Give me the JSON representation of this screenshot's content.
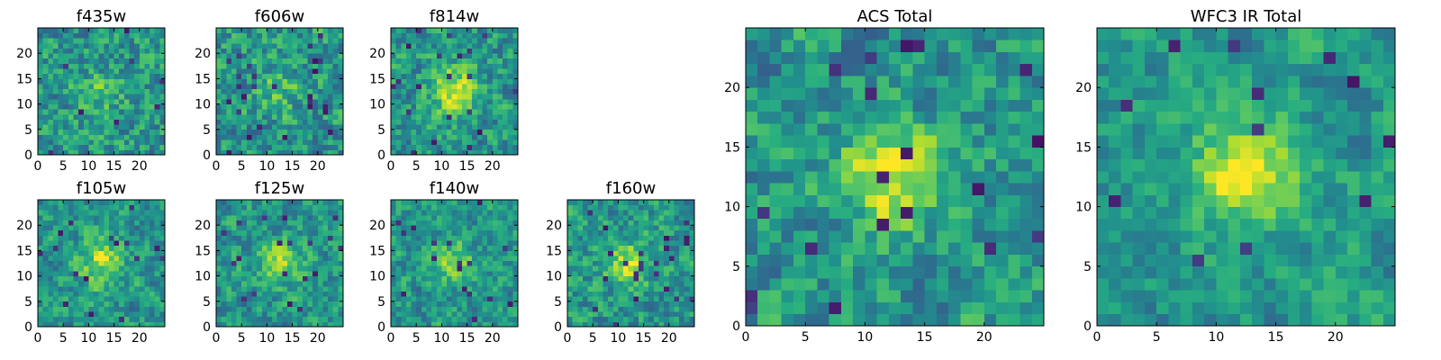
{
  "chart_data": [
    {
      "type": "heatmap",
      "title": "f435w",
      "colormap": "viridis",
      "grid": false,
      "xlim": [
        0,
        25
      ],
      "ylim": [
        0,
        25
      ],
      "xticks": [
        0,
        5,
        10,
        15,
        20
      ],
      "yticks": [
        0,
        5,
        10,
        15,
        20
      ],
      "tick_labels_x": [
        "0",
        "5",
        "10",
        "15",
        "20"
      ],
      "tick_labels_y": [
        "0",
        "5",
        "10",
        "15",
        "20"
      ],
      "pixel_grid": [
        25,
        25
      ],
      "center_peak": 0.15,
      "speckle": 0.7,
      "seed": 11
    },
    {
      "type": "heatmap",
      "title": "f606w",
      "colormap": "viridis",
      "grid": false,
      "xlim": [
        0,
        25
      ],
      "ylim": [
        0,
        25
      ],
      "xticks": [
        0,
        5,
        10,
        15,
        20
      ],
      "yticks": [
        0,
        5,
        10,
        15,
        20
      ],
      "tick_labels_x": [
        "0",
        "5",
        "10",
        "15",
        "20"
      ],
      "tick_labels_y": [
        "0",
        "5",
        "10",
        "15",
        "20"
      ],
      "pixel_grid": [
        25,
        25
      ],
      "center_peak": 0.2,
      "speckle": 0.7,
      "seed": 23
    },
    {
      "type": "heatmap",
      "title": "f814w",
      "colormap": "viridis",
      "grid": false,
      "xlim": [
        0,
        25
      ],
      "ylim": [
        0,
        25
      ],
      "xticks": [
        0,
        5,
        10,
        15,
        20
      ],
      "yticks": [
        0,
        5,
        10,
        15,
        20
      ],
      "tick_labels_x": [
        "0",
        "5",
        "10",
        "15",
        "20"
      ],
      "tick_labels_y": [
        "0",
        "5",
        "10",
        "15",
        "20"
      ],
      "pixel_grid": [
        25,
        25
      ],
      "center_peak": 0.45,
      "speckle": 0.65,
      "seed": 37
    },
    {
      "type": "heatmap",
      "title": "f105w",
      "colormap": "viridis",
      "grid": false,
      "xlim": [
        0,
        25
      ],
      "ylim": [
        0,
        25
      ],
      "xticks": [
        0,
        5,
        10,
        15,
        20
      ],
      "yticks": [
        0,
        5,
        10,
        15,
        20
      ],
      "tick_labels_x": [
        "0",
        "5",
        "10",
        "15",
        "20"
      ],
      "tick_labels_y": [
        "0",
        "5",
        "10",
        "15",
        "20"
      ],
      "pixel_grid": [
        25,
        25
      ],
      "center_peak": 0.35,
      "speckle": 0.55,
      "seed": 41
    },
    {
      "type": "heatmap",
      "title": "f125w",
      "colormap": "viridis",
      "grid": false,
      "xlim": [
        0,
        25
      ],
      "ylim": [
        0,
        25
      ],
      "xticks": [
        0,
        5,
        10,
        15,
        20
      ],
      "yticks": [
        0,
        5,
        10,
        15,
        20
      ],
      "tick_labels_x": [
        "0",
        "5",
        "10",
        "15",
        "20"
      ],
      "tick_labels_y": [
        "0",
        "5",
        "10",
        "15",
        "20"
      ],
      "pixel_grid": [
        25,
        25
      ],
      "center_peak": 0.3,
      "speckle": 0.55,
      "seed": 53
    },
    {
      "type": "heatmap",
      "title": "f140w",
      "colormap": "viridis",
      "grid": false,
      "xlim": [
        0,
        25
      ],
      "ylim": [
        0,
        25
      ],
      "xticks": [
        0,
        5,
        10,
        15,
        20
      ],
      "yticks": [
        0,
        5,
        10,
        15,
        20
      ],
      "tick_labels_x": [
        "0",
        "5",
        "10",
        "15",
        "20"
      ],
      "tick_labels_y": [
        "0",
        "5",
        "10",
        "15",
        "20"
      ],
      "pixel_grid": [
        25,
        25
      ],
      "center_peak": 0.3,
      "speckle": 0.55,
      "seed": 67
    },
    {
      "type": "heatmap",
      "title": "f160w",
      "colormap": "viridis",
      "grid": false,
      "xlim": [
        0,
        25
      ],
      "ylim": [
        0,
        25
      ],
      "xticks": [
        0,
        5,
        10,
        15,
        20
      ],
      "yticks": [
        0,
        5,
        10,
        15,
        20
      ],
      "tick_labels_x": [
        "0",
        "5",
        "10",
        "15",
        "20"
      ],
      "tick_labels_y": [
        "0",
        "5",
        "10",
        "15",
        "20"
      ],
      "pixel_grid": [
        25,
        25
      ],
      "center_peak": 0.4,
      "speckle": 0.6,
      "seed": 79
    },
    {
      "type": "heatmap",
      "title": "ACS Total",
      "colormap": "viridis",
      "grid": false,
      "xlim": [
        0,
        25
      ],
      "ylim": [
        0,
        25
      ],
      "xticks": [
        0,
        5,
        10,
        15,
        20
      ],
      "yticks": [
        0,
        5,
        10,
        15,
        20
      ],
      "tick_labels_x": [
        "0",
        "5",
        "10",
        "15",
        "20"
      ],
      "tick_labels_y": [
        "0",
        "5",
        "10",
        "15",
        "20"
      ],
      "pixel_grid": [
        25,
        25
      ],
      "center_peak": 0.45,
      "speckle": 0.6,
      "seed": 97
    },
    {
      "type": "heatmap",
      "title": "WFC3 IR Total",
      "colormap": "viridis",
      "grid": false,
      "xlim": [
        0,
        25
      ],
      "ylim": [
        0,
        25
      ],
      "xticks": [
        0,
        5,
        10,
        15,
        20
      ],
      "yticks": [
        0,
        5,
        10,
        15,
        20
      ],
      "tick_labels_x": [
        "0",
        "5",
        "10",
        "15",
        "20"
      ],
      "tick_labels_y": [
        "0",
        "5",
        "10",
        "15",
        "20"
      ],
      "pixel_grid": [
        25,
        25
      ],
      "center_peak": 0.5,
      "speckle": 0.45,
      "seed": 113
    }
  ]
}
